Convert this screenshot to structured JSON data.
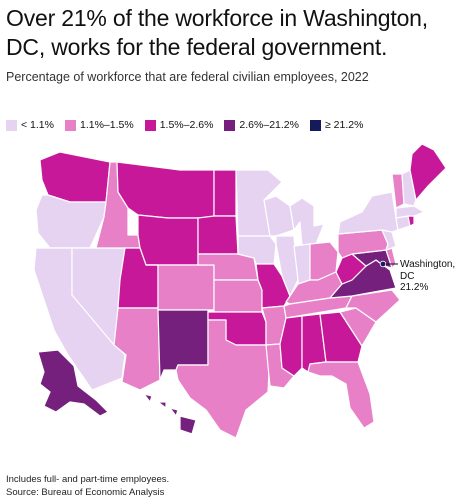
{
  "title": "Over 21% of the workforce in Washington, DC, works for the federal government.",
  "subtitle": "Percentage of workforce that are federal civilian employees, 2022",
  "legend": [
    {
      "label": "< 1.1%",
      "color": "#e6d3f2"
    },
    {
      "label": "1.1%–1.5%",
      "color": "#e880c8"
    },
    {
      "label": "1.5%–2.6%",
      "color": "#c8189a"
    },
    {
      "label": "2.6%–21.2%",
      "color": "#76207e"
    },
    {
      "label": "≥ 21.2%",
      "color": "#141a5c"
    }
  ],
  "callout": {
    "label": "Washington,\nDC\n21.2%"
  },
  "footnote": "Includes full- and part-time employees.",
  "source": "Source: Bureau of Economic Analysis",
  "states": {
    "WA": "1.5%–2.6%",
    "OR": "< 1.1%",
    "CA": "< 1.1%",
    "NV": "< 1.1%",
    "ID": "1.1%–1.5%",
    "MT": "1.5%–2.6%",
    "WY": "1.5%–2.6%",
    "UT": "1.5%–2.6%",
    "AZ": "1.1%–1.5%",
    "CO": "1.1%–1.5%",
    "NM": "2.6%–21.2%",
    "ND": "1.5%–2.6%",
    "SD": "1.5%–2.6%",
    "NE": "1.1%–1.5%",
    "KS": "1.1%–1.5%",
    "OK": "1.5%–2.6%",
    "TX": "1.1%–1.5%",
    "MN": "< 1.1%",
    "IA": "< 1.1%",
    "MO": "1.5%–2.6%",
    "AR": "1.1%–1.5%",
    "LA": "1.1%–1.5%",
    "WI": "< 1.1%",
    "IL": "< 1.1%",
    "MI": "< 1.1%",
    "IN": "< 1.1%",
    "OH": "1.1%–1.5%",
    "KY": "1.1%–1.5%",
    "TN": "1.1%–1.5%",
    "MS": "1.5%–2.6%",
    "AL": "1.5%–2.6%",
    "GA": "1.5%–2.6%",
    "FL": "1.1%–1.5%",
    "SC": "1.1%–1.5%",
    "NC": "1.1%–1.5%",
    "VA": "2.6%–21.2%",
    "WV": "1.5%–2.6%",
    "MD": "2.6%–21.2%",
    "DE": "1.1%–1.5%",
    "PA": "1.1%–1.5%",
    "NJ": "< 1.1%",
    "NY": "< 1.1%",
    "CT": "< 1.1%",
    "RI": "1.5%–2.6%",
    "MA": "< 1.1%",
    "VT": "1.1%–1.5%",
    "NH": "< 1.1%",
    "ME": "1.5%–2.6%",
    "AK": "2.6%–21.2%",
    "HI": "2.6%–21.2%",
    "DC": "≥ 21.2%"
  }
}
